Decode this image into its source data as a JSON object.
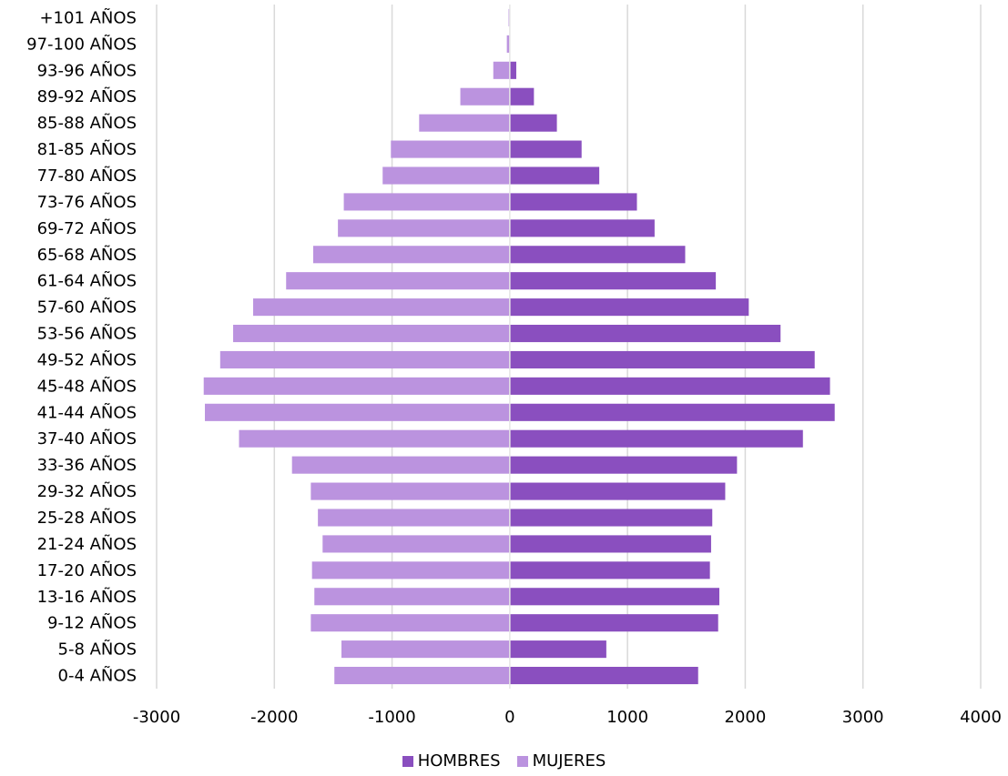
{
  "chart_data": {
    "type": "bar",
    "orientation": "horizontal",
    "categories": [
      "+101 AÑOS",
      "97-100 AÑOS",
      "93-96 AÑOS",
      "89-92 AÑOS",
      "85-88 AÑOS",
      "81-85 AÑOS",
      "77-80 AÑOS",
      "73-76 AÑOS",
      "69-72 AÑOS",
      "65-68 AÑOS",
      "61-64 AÑOS",
      "57-60 AÑOS",
      "53-56 AÑOS",
      "49-52 AÑOS",
      "45-48 AÑOS",
      "41-44 AÑOS",
      "37-40 AÑOS",
      "33-36 AÑOS",
      "29-32 AÑOS",
      "25-28 AÑOS",
      "21-24 AÑOS",
      "17-20 AÑOS",
      "13-16 AÑOS",
      "9-12 AÑOS",
      "5-8 AÑOS",
      "0-4 AÑOS"
    ],
    "series": [
      {
        "name": "HOMBRES",
        "color": "#8a4fbf",
        "values": [
          0,
          5,
          55,
          205,
          400,
          610,
          760,
          1080,
          1230,
          1490,
          1750,
          2030,
          2300,
          2590,
          2720,
          2760,
          2490,
          1930,
          1830,
          1720,
          1710,
          1700,
          1780,
          1770,
          820,
          1600
        ]
      },
      {
        "name": "MUJERES",
        "color": "#bb93df",
        "values": [
          -10,
          -25,
          -140,
          -420,
          -770,
          -1010,
          -1080,
          -1410,
          -1460,
          -1670,
          -1900,
          -2180,
          -2350,
          -2460,
          -2600,
          -2590,
          -2300,
          -1850,
          -1690,
          -1630,
          -1590,
          -1680,
          -1660,
          -1690,
          -1430,
          -1490
        ]
      }
    ],
    "xlim": [
      -3000,
      4000
    ],
    "xticks": [
      -3000,
      -2000,
      -1000,
      0,
      1000,
      2000,
      3000,
      4000
    ],
    "xtick_labels": [
      "-3000",
      "-2000",
      "-1000",
      "0",
      "1000",
      "2000",
      "3000",
      "4000"
    ],
    "grid": "vertical",
    "legend_position": "bottom",
    "title": "",
    "xlabel": "",
    "ylabel": ""
  }
}
